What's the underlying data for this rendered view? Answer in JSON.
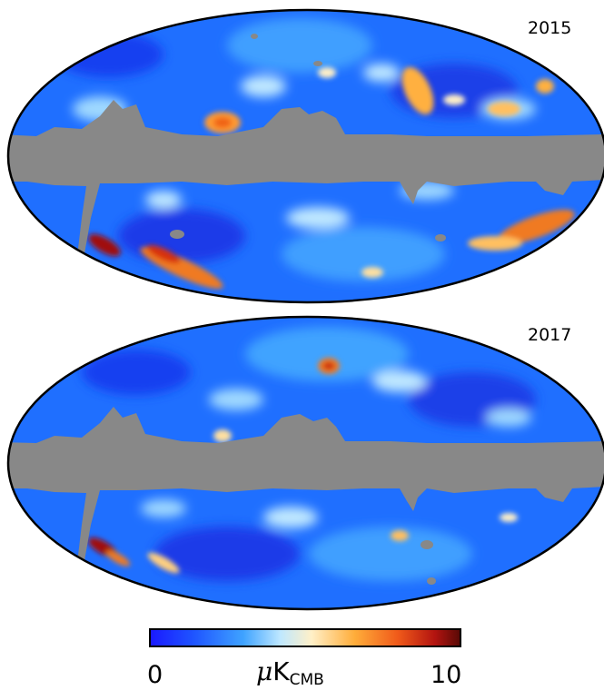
{
  "panels": [
    {
      "year": "2015"
    },
    {
      "year": "2017"
    }
  ],
  "colorbar": {
    "min_label": "0",
    "max_label": "10",
    "unit_symbol": "μ",
    "unit_main": "K",
    "unit_sub": "CMB",
    "stops": [
      "#1a1aff",
      "#1f55ff",
      "#3fa3ff",
      "#bfe8ff",
      "#fff0c8",
      "#ffad3a",
      "#f05a1a",
      "#b31410",
      "#5a0a06"
    ]
  },
  "colors": {
    "mask": "#888888",
    "background_field": "#1f6fff",
    "outline": "#000000"
  }
}
